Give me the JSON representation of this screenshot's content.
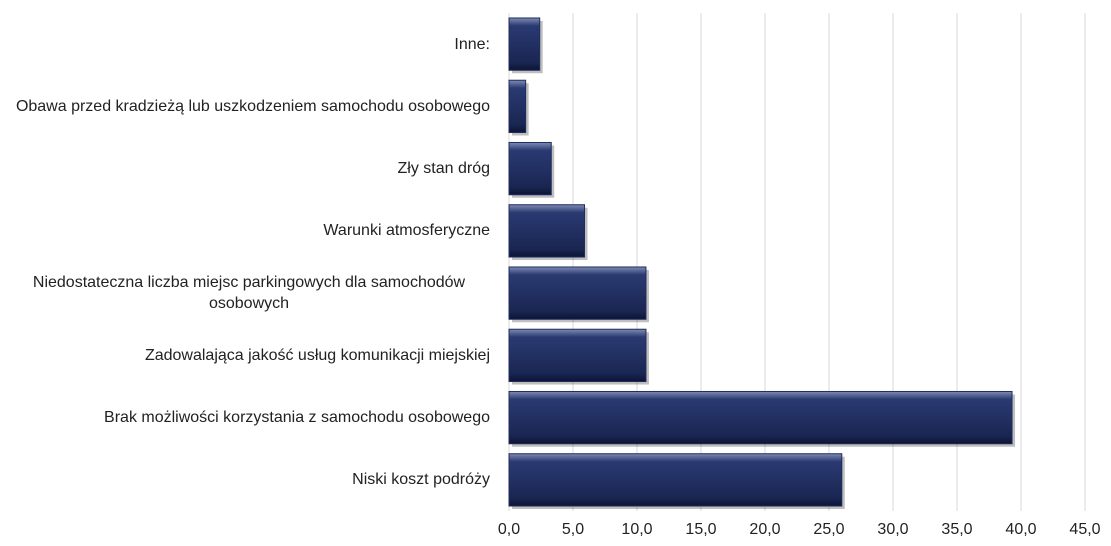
{
  "chart_data": {
    "type": "bar",
    "orientation": "horizontal",
    "categories": [
      "Inne:",
      "Obawa przed kradzieżą lub uszkodzeniem samochodu osobowego",
      "Zły stan dróg",
      "Warunki atmosferyczne",
      "Niedostateczna liczba miejsc parkingowych dla samochodów osobowych",
      "Zadowalająca jakość usług komunikacji miejskiej",
      "Brak możliwości korzystania z samochodu osobowego",
      "Niski koszt podróży"
    ],
    "values": [
      2.4,
      1.3,
      3.3,
      5.9,
      10.7,
      10.7,
      39.3,
      26.0
    ],
    "color": "#1f2d5e",
    "xlim": [
      0,
      45
    ],
    "xticks": [
      {
        "value": 0,
        "label": "0,0"
      },
      {
        "value": 5,
        "label": "5,0"
      },
      {
        "value": 10,
        "label": "10,0"
      },
      {
        "value": 15,
        "label": "15,0"
      },
      {
        "value": 20,
        "label": "20,0"
      },
      {
        "value": 25,
        "label": "25,0"
      },
      {
        "value": 30,
        "label": "30,0"
      },
      {
        "value": 35,
        "label": "35,0"
      },
      {
        "value": 40,
        "label": "40,0"
      },
      {
        "value": 45,
        "label": "45,0"
      }
    ],
    "grid": true
  }
}
